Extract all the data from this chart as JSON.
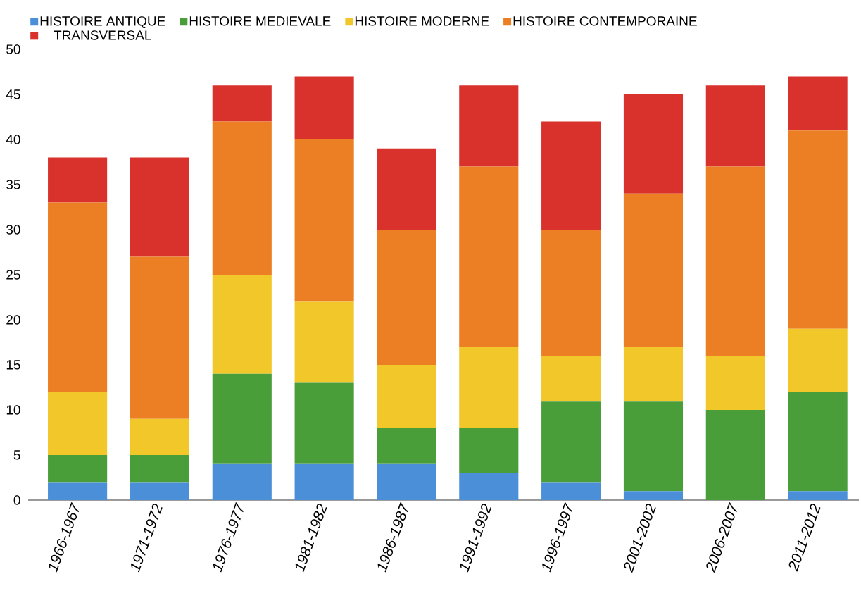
{
  "chart_data": {
    "type": "bar",
    "stacked": true,
    "categories": [
      "1966-1967",
      "1971-1972",
      "1976-1977",
      "1981-1982",
      "1986-1987",
      "1991-1992",
      "1996-1997",
      "2001-2002",
      "2006-2007",
      "2011-2012"
    ],
    "series": [
      {
        "name": "HISTOIRE ANTIQUE",
        "color": "#4a8fd8",
        "values": [
          2,
          2,
          4,
          4,
          4,
          3,
          2,
          1,
          0,
          1
        ]
      },
      {
        "name": "HISTOIRE MEDIEVALE",
        "color": "#4a9e3a",
        "values": [
          3,
          3,
          10,
          9,
          4,
          5,
          9,
          10,
          10,
          11
        ]
      },
      {
        "name": "HISTOIRE MODERNE",
        "color": "#f2c72a",
        "values": [
          7,
          4,
          11,
          9,
          7,
          9,
          5,
          6,
          6,
          7
        ]
      },
      {
        "name": "HISTOIRE CONTEMPORAINE",
        "color": "#ec7e23",
        "values": [
          21,
          18,
          17,
          18,
          15,
          20,
          14,
          17,
          21,
          22
        ]
      },
      {
        "name": "TRANSVERSAL",
        "color": "#d9312b",
        "values": [
          5,
          11,
          4,
          7,
          9,
          9,
          12,
          11,
          9,
          6
        ]
      }
    ],
    "ylim": [
      0,
      50
    ],
    "yticks": [
      0,
      5,
      10,
      15,
      20,
      25,
      30,
      35,
      40,
      45,
      50
    ],
    "legend": "top left"
  }
}
